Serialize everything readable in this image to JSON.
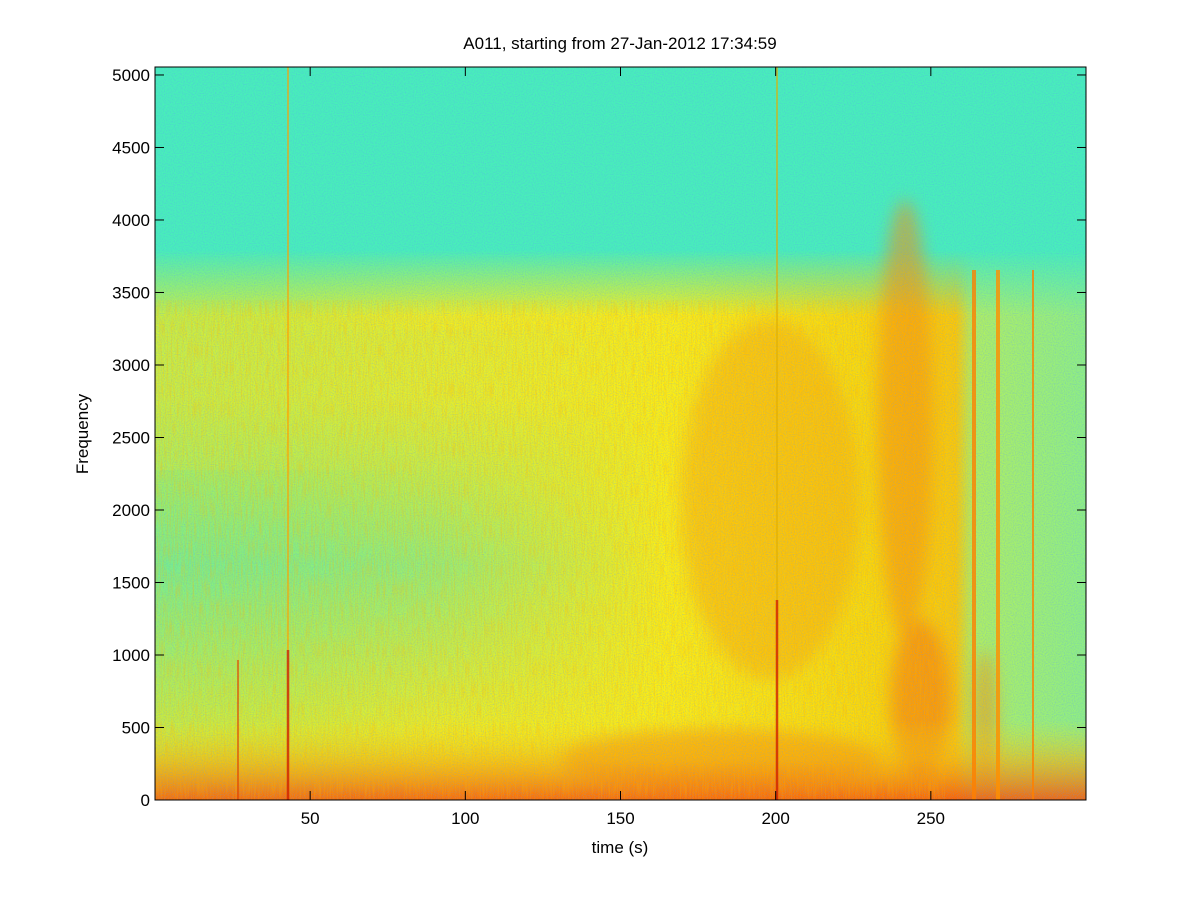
{
  "chart_data": {
    "type": "spectrogram",
    "title": "A011, starting from 27-Jan-2012 17:34:59",
    "x_label": "time (s)",
    "y_label": "Frequency",
    "xlim": [
      0,
      300
    ],
    "ylim": [
      0,
      5055
    ],
    "xticks": [
      50,
      100,
      150,
      200,
      250
    ],
    "yticks": [
      0,
      500,
      1000,
      1500,
      2000,
      2500,
      3000,
      3500,
      4000,
      4500,
      5000
    ]
  }
}
